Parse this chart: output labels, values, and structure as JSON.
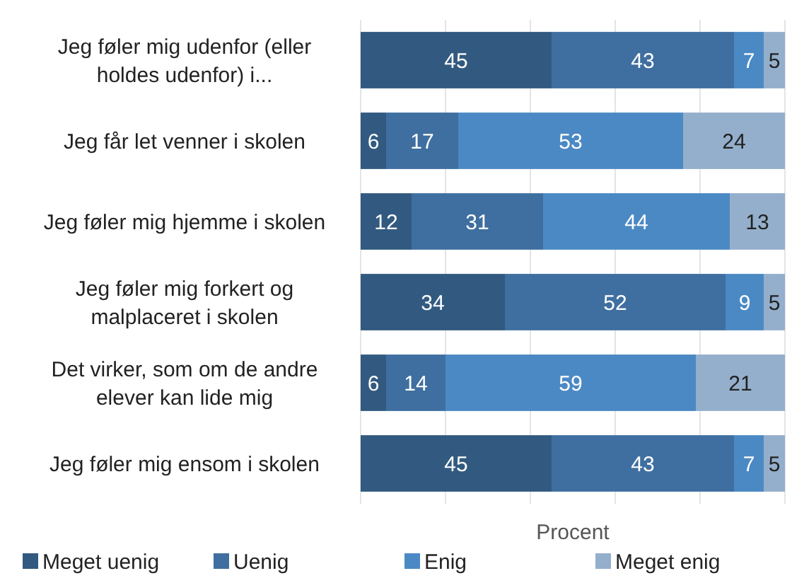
{
  "chart_data": {
    "type": "bar",
    "orientation": "horizontal",
    "stacked": true,
    "xlabel": "Procent",
    "categories": [
      "Jeg føler mig udenfor (eller holdes udenfor) i...",
      "Jeg får let venner i skolen",
      "Jeg føler mig hjemme i skolen",
      "Jeg føler mig forkert og malplaceret i skolen",
      "Det virker, som om de andre elever kan lide mig",
      "Jeg føler mig ensom i skolen"
    ],
    "series": [
      {
        "name": "Meget uenig",
        "color": "#325a80",
        "values": [
          45,
          6,
          12,
          34,
          6,
          45
        ]
      },
      {
        "name": "Uenig",
        "color": "#3f6fa0",
        "values": [
          43,
          17,
          31,
          52,
          14,
          43
        ]
      },
      {
        "name": "Enig",
        "color": "#4b89c4",
        "values": [
          7,
          53,
          44,
          9,
          59,
          7
        ]
      },
      {
        "name": "Meget enig",
        "color": "#94afcc",
        "values": [
          5,
          24,
          13,
          5,
          21,
          5
        ]
      }
    ],
    "xlim": [
      0,
      100
    ],
    "xticks": [
      {
        "value": 0,
        "label": null
      },
      {
        "value": 20,
        "label": null
      },
      {
        "value": 40,
        "label": null
      },
      {
        "value": 60,
        "label": null
      },
      {
        "value": 80,
        "label": null
      },
      {
        "value": 100,
        "label": null
      }
    ],
    "tick_labels": "y",
    "grid": "x",
    "legend": "bottom",
    "data_labels": true
  }
}
